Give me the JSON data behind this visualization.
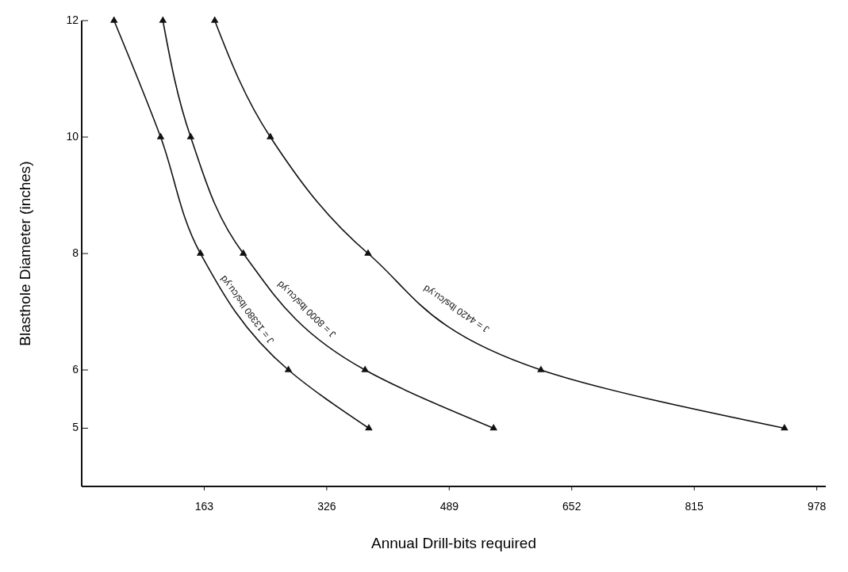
{
  "chart_data": {
    "type": "line",
    "xlabel": "Annual Drill-bits required",
    "ylabel": "Blasthole Diameter  (inches)",
    "xlim": [
      0,
      990
    ],
    "ylim": [
      4,
      12
    ],
    "xticks": [
      163,
      326,
      489,
      652,
      815,
      978
    ],
    "yticks": [
      5,
      6,
      8,
      10,
      12
    ],
    "grid": false,
    "marker": "triangle",
    "line_style": "solid",
    "series": [
      {
        "name": "J = 13380  lbs/cu.yd",
        "color": "#111111",
        "x": [
          43,
          105,
          158,
          275,
          382
        ],
        "values": [
          12,
          10,
          8,
          6,
          5
        ]
      },
      {
        "name": "J = 8000  lbs/cu.yd",
        "color": "#111111",
        "x": [
          108,
          145,
          215,
          377,
          548
        ],
        "values": [
          12,
          10,
          8,
          6,
          5
        ]
      },
      {
        "name": "J = 4420  lbs/cu.yd",
        "color": "#111111",
        "x": [
          177,
          251,
          381,
          611,
          935
        ],
        "values": [
          12,
          10,
          8,
          6,
          5
        ]
      }
    ]
  }
}
